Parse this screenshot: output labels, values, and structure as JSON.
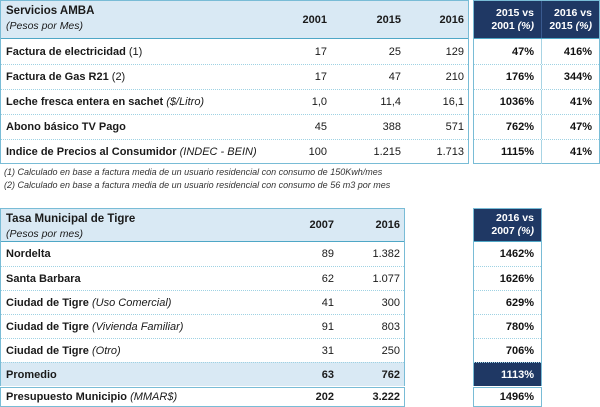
{
  "colors": {
    "header_bg": "#d9e9f4",
    "navy": "#1f3864",
    "solid_border": "#79bcd6",
    "dotted_border": "#9fd2e3"
  },
  "table1": {
    "title": "Servicios AMBA",
    "subtitle": "(Pesos por Mes)",
    "years": [
      "2001",
      "2015",
      "2016"
    ],
    "pct_headers": [
      {
        "line1": "2015 vs",
        "year": "2001 ",
        "pct": "(%)"
      },
      {
        "line1": "2016 vs",
        "year": "2015 ",
        "pct": "(%)"
      }
    ],
    "rows": [
      {
        "label": "Factura de electricidad",
        "suffix": " (1)",
        "values": [
          "17",
          "25",
          "129"
        ],
        "pcts": [
          "47%",
          "416%"
        ]
      },
      {
        "label": "Factura de Gas R21",
        "suffix": " (2)",
        "values": [
          "17",
          "47",
          "210"
        ],
        "pcts": [
          "176%",
          "344%"
        ]
      },
      {
        "label": "Leche fresca entera en sachet",
        "suffix": " ($/Litro)",
        "values": [
          "1,0",
          "11,4",
          "16,1"
        ],
        "pcts": [
          "1036%",
          "41%"
        ]
      },
      {
        "label": "Abono básico TV Pago",
        "suffix": "",
        "values": [
          "45",
          "388",
          "571"
        ],
        "pcts": [
          "762%",
          "47%"
        ]
      },
      {
        "label": "Indice de Precios al Consumidor",
        "suffix": " (INDEC - BEIN)",
        "values": [
          "100",
          "1.215",
          "1.713"
        ],
        "pcts": [
          "1115%",
          "41%"
        ]
      }
    ],
    "footnotes": [
      "(1) Calculado en base a factura media de un usuario residencial con consumo de 150Kwh/mes",
      "(2) Calculado en base a factura media de un usuario residencial con consumo  de 56 m3 por mes"
    ]
  },
  "table2": {
    "title": "Tasa Municipal de Tigre",
    "subtitle": "(Pesos por mes)",
    "years": [
      "2007",
      "2016"
    ],
    "pct_headers": [
      {
        "line1": "2016 vs",
        "year": "2007 ",
        "pct": "(%)"
      }
    ],
    "rows": [
      {
        "label": "Nordelta",
        "suffix": "",
        "values": [
          "89",
          "1.382"
        ],
        "pcts": [
          "1462%"
        ]
      },
      {
        "label": "Santa Barbara",
        "suffix": "",
        "values": [
          "62",
          "1.077"
        ],
        "pcts": [
          "1626%"
        ]
      },
      {
        "label": "Ciudad de Tigre",
        "suffix": " (Uso Comercial)",
        "values": [
          "41",
          "300"
        ],
        "pcts": [
          "629%"
        ]
      },
      {
        "label": "Ciudad de Tigre",
        "suffix": " (Vivienda Familiar)",
        "values": [
          "91",
          "803"
        ],
        "pcts": [
          "780%"
        ]
      },
      {
        "label": "Ciudad de Tigre",
        "suffix": " (Otro)",
        "values": [
          "31",
          "250"
        ],
        "pcts": [
          "706%"
        ]
      },
      {
        "label": "Promedio",
        "suffix": "",
        "values": [
          "63",
          "762"
        ],
        "pcts": [
          "1113%"
        ]
      }
    ],
    "budget_row": {
      "label": "Presupuesto Municipio",
      "suffix": " (MMAR$)",
      "values": [
        "202",
        "3.222"
      ],
      "pcts": [
        "1496%"
      ]
    }
  }
}
